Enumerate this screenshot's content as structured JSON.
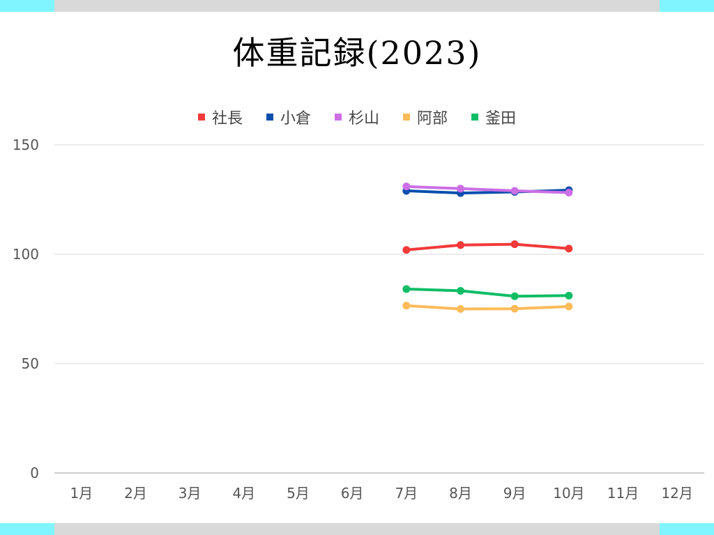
{
  "chart_data": {
    "type": "line",
    "title": "体重記録(2023)",
    "xlabel": "",
    "ylabel": "",
    "categories": [
      "1月",
      "2月",
      "3月",
      "4月",
      "5月",
      "6月",
      "7月",
      "8月",
      "9月",
      "10月",
      "11月",
      "12月"
    ],
    "ylim": [
      0,
      150
    ],
    "yticks": [
      0,
      50,
      100,
      150
    ],
    "grid": true,
    "legend_position": "top",
    "series": [
      {
        "name": "社長",
        "color": "#f23a3a",
        "values": [
          null,
          null,
          null,
          null,
          null,
          null,
          102,
          104.2,
          104.6,
          102.6,
          null,
          null
        ]
      },
      {
        "name": "小倉",
        "color": "#0a4fad",
        "values": [
          null,
          null,
          null,
          null,
          null,
          null,
          129,
          128,
          128.5,
          129.3,
          null,
          null
        ]
      },
      {
        "name": "杉山",
        "color": "#cc6ee6",
        "values": [
          null,
          null,
          null,
          null,
          null,
          null,
          131,
          130,
          129,
          128.2,
          null,
          null
        ]
      },
      {
        "name": "阿部",
        "color": "#fdbb5a",
        "values": [
          null,
          null,
          null,
          null,
          null,
          null,
          76.5,
          75,
          75.1,
          76.1,
          null,
          null
        ]
      },
      {
        "name": "釜田",
        "color": "#0fbd66",
        "values": [
          null,
          null,
          null,
          null,
          null,
          null,
          84.1,
          83.3,
          80.8,
          81.1,
          null,
          null
        ]
      }
    ]
  },
  "decor": {
    "bar_color": "#d9d9d9",
    "accent_color": "#80f5ff"
  }
}
